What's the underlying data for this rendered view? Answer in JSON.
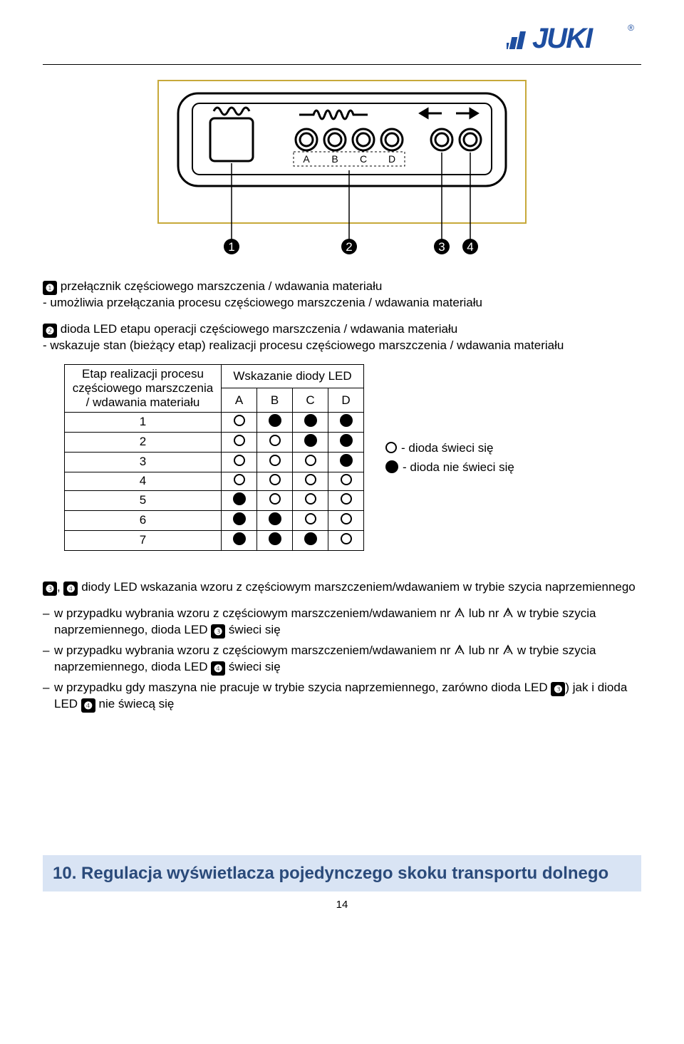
{
  "logo": {
    "text": "JUKI",
    "reg": "®",
    "color": "#1e4ea0"
  },
  "colors": {
    "section_bg": "#d9e4f4",
    "section_text": "#2a4a7a",
    "border": "#000000"
  },
  "para1": {
    "num": "❶",
    "line1": "przełącznik częściowego marszczenia / wdawania materiału",
    "line2": "- umożliwia przełączania procesu częściowego marszczenia / wdawania materiału"
  },
  "para2": {
    "num": "❷",
    "line1": "dioda LED etapu operacji częściowego marszczenia / wdawania materiału",
    "line2": "- wskazuje stan (bieżący etap) realizacji procesu częściowego marszczenia / wdawania materiału"
  },
  "table": {
    "row_header": "Etap realizacji procesu częściowego marszczenia / wdawania materiału",
    "col_header": "Wskazanie diody LED",
    "cols": [
      "A",
      "B",
      "C",
      "D"
    ],
    "rows": [
      {
        "n": "1",
        "v": [
          0,
          1,
          1,
          1
        ]
      },
      {
        "n": "2",
        "v": [
          0,
          0,
          1,
          1
        ]
      },
      {
        "n": "3",
        "v": [
          0,
          0,
          0,
          1
        ]
      },
      {
        "n": "4",
        "v": [
          0,
          0,
          0,
          0
        ]
      },
      {
        "n": "5",
        "v": [
          1,
          0,
          0,
          0
        ]
      },
      {
        "n": "6",
        "v": [
          1,
          1,
          0,
          0
        ]
      },
      {
        "n": "7",
        "v": [
          1,
          1,
          1,
          0
        ]
      }
    ]
  },
  "legend": {
    "on": "- dioda świeci się",
    "off": "- dioda nie świeci się"
  },
  "para3": {
    "nums": "❸, ❹",
    "text": "diody LED wskazania wzoru z częściowym marszczeniem/wdawaniem w trybie szycia naprzemiennego"
  },
  "notes": [
    {
      "pre": "w przypadku wybrania wzoru z częściowym marszczeniem/wdawaniem nr ",
      "ic1": "1",
      "mid": " lub nr ",
      "ic2": "3",
      "tail": " w trybie szycia naprzemiennego, dioda LED ",
      "bnum": "❸",
      "end": " świeci się"
    },
    {
      "pre": "w przypadku wybrania wzoru z częściowym marszczeniem/wdawaniem nr ",
      "ic1": "2",
      "mid": " lub nr ",
      "ic2": "3",
      "tail": " w trybie szycia naprzemiennego, dioda LED ",
      "bnum": "❹",
      "end": " świeci się"
    },
    {
      "full1": "w przypadku gdy maszyna nie pracuje w trybie szycia naprzemiennego, zarówno dioda LED ",
      "b1": "❸",
      "full2": ") jak i dioda LED ",
      "b2": "❹",
      "full3": " nie świecą się"
    }
  ],
  "section": "10. Regulacja wyświetlacza pojedynczego skoku transportu dolnego",
  "pagenum": "14"
}
